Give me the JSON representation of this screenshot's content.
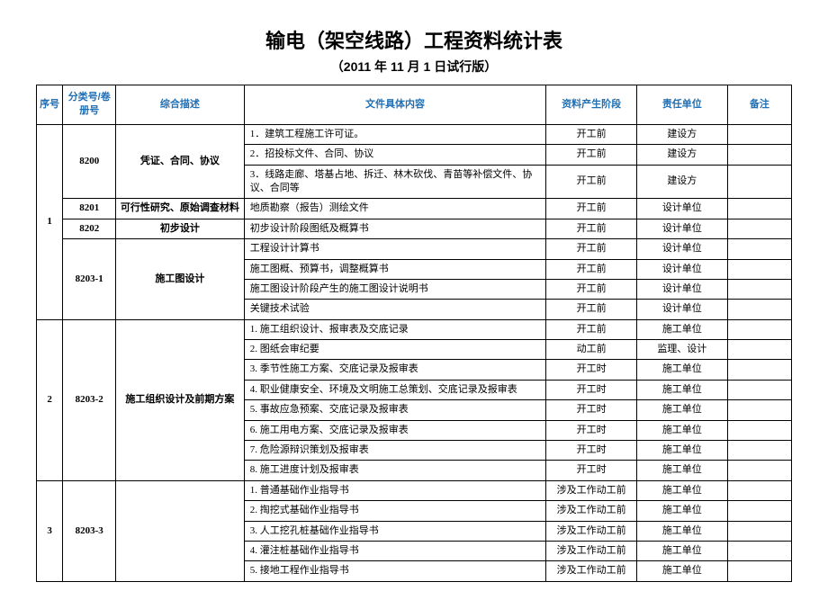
{
  "title": "输电（架空线路）工程资料统计表",
  "subtitle": "（2011 年 11 月 1 日试行版）",
  "headers": {
    "seq": "序号",
    "cat": "分类号/卷册号",
    "desc": "综合描述",
    "file": "文件具体内容",
    "stage": "资料产生阶段",
    "unit": "责任单位",
    "note": "备注"
  },
  "colors": {
    "header_text": "#1f6fb5",
    "border": "#000000",
    "background": "#ffffff"
  },
  "groups": [
    {
      "seq": "1",
      "subgroups": [
        {
          "cat": "8200",
          "desc": "凭证、合同、协议",
          "rows": [
            {
              "file": "1．建筑工程施工许可证。",
              "stage": "开工前",
              "unit": "建设方",
              "note": ""
            },
            {
              "file": "2．招投标文件、合同、协议",
              "stage": "开工前",
              "unit": "建设方",
              "note": ""
            },
            {
              "file": "3．线路走廊、塔基占地、拆迁、林木砍伐、青苗等补偿文件、协议、合同等",
              "stage": "开工前",
              "unit": "建设方",
              "note": ""
            }
          ]
        },
        {
          "cat": "8201",
          "desc": "可行性研究、原始调查材料",
          "rows": [
            {
              "file": "地质勘察（报告）测绘文件",
              "stage": "开工前",
              "unit": "设计单位",
              "note": ""
            }
          ]
        },
        {
          "cat": "8202",
          "desc": "初步设计",
          "rows": [
            {
              "file": "初步设计阶段图纸及概算书",
              "stage": "开工前",
              "unit": "设计单位",
              "note": ""
            }
          ]
        },
        {
          "cat": "8203-1",
          "desc": "施工图设计",
          "rows": [
            {
              "file": "工程设计计算书",
              "stage": "开工前",
              "unit": "设计单位",
              "note": ""
            },
            {
              "file": "施工图概、预算书，调整概算书",
              "stage": "开工前",
              "unit": "设计单位",
              "note": ""
            },
            {
              "file": "施工图设计阶段产生的施工图设计说明书",
              "stage": "开工前",
              "unit": "设计单位",
              "note": ""
            },
            {
              "file": "关键技术试验",
              "stage": "开工前",
              "unit": "设计单位",
              "note": ""
            }
          ]
        }
      ]
    },
    {
      "seq": "2",
      "subgroups": [
        {
          "cat": "8203-2",
          "desc": "施工组织设计及前期方案",
          "rows": [
            {
              "file": "1. 施工组织设计、报审表及交底记录",
              "stage": "开工前",
              "unit": "施工单位",
              "note": ""
            },
            {
              "file": "2. 图纸会审纪要",
              "stage": "动工前",
              "unit": "监理、设计",
              "note": ""
            },
            {
              "file": "3. 季节性施工方案、交底记录及报审表",
              "stage": "开工时",
              "unit": "施工单位",
              "note": ""
            },
            {
              "file": "4. 职业健康安全、环境及文明施工总策划、交底记录及报审表",
              "stage": "开工时",
              "unit": "施工单位",
              "note": ""
            },
            {
              "file": "5. 事故应急预案、交底记录及报审表",
              "stage": "开工时",
              "unit": "施工单位",
              "note": ""
            },
            {
              "file": "6. 施工用电方案、交底记录及报审表",
              "stage": "开工时",
              "unit": "施工单位",
              "note": ""
            },
            {
              "file": "7. 危险源辩识策划及报审表",
              "stage": "开工时",
              "unit": "施工单位",
              "note": ""
            },
            {
              "file": "8. 施工进度计划及报审表",
              "stage": "开工时",
              "unit": "施工单位",
              "note": ""
            }
          ]
        }
      ]
    },
    {
      "seq": "3",
      "subgroups": [
        {
          "cat": "8203-3",
          "desc": "",
          "rows": [
            {
              "file": "1. 普通基础作业指导书",
              "stage": "涉及工作动工前",
              "unit": "施工单位",
              "note": ""
            },
            {
              "file": "2. 掏挖式基础作业指导书",
              "stage": "涉及工作动工前",
              "unit": "施工单位",
              "note": ""
            },
            {
              "file": "3. 人工挖孔桩基础作业指导书",
              "stage": "涉及工作动工前",
              "unit": "施工单位",
              "note": ""
            },
            {
              "file": "4. 灌注桩基础作业指导书",
              "stage": "涉及工作动工前",
              "unit": "施工单位",
              "note": ""
            },
            {
              "file": "5. 接地工程作业指导书",
              "stage": "涉及工作动工前",
              "unit": "施工单位",
              "note": ""
            }
          ]
        }
      ]
    }
  ]
}
